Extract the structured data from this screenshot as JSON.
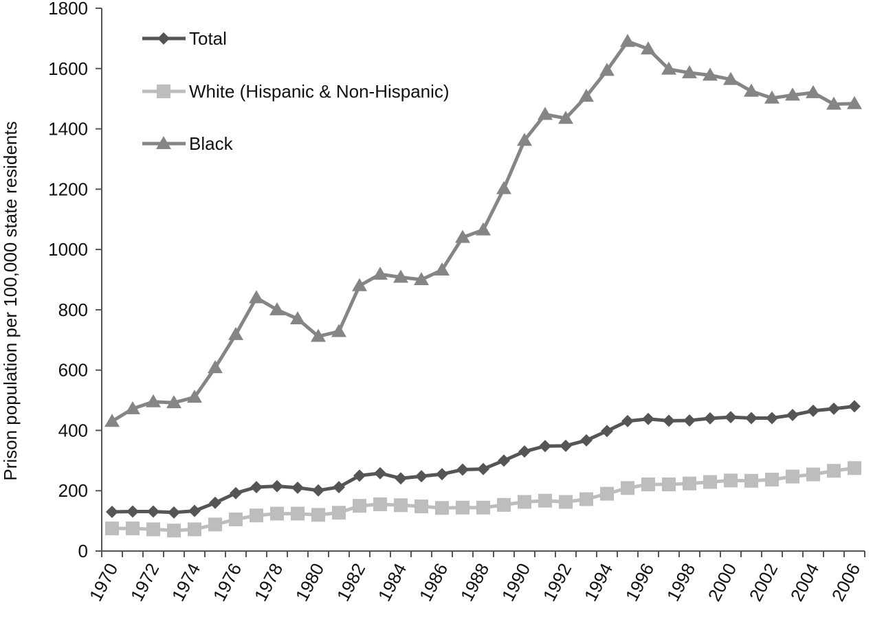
{
  "chart_data": {
    "type": "line",
    "title": "",
    "xlabel": "",
    "ylabel": "Prison population per 100,000 state residents",
    "ylim": [
      0,
      1800
    ],
    "yticks": [
      0,
      200,
      400,
      600,
      800,
      1000,
      1200,
      1400,
      1600,
      1800
    ],
    "xticks": [
      1970,
      1972,
      1974,
      1976,
      1978,
      1980,
      1982,
      1984,
      1986,
      1988,
      1990,
      1992,
      1994,
      1996,
      1998,
      2000,
      2002,
      2004,
      2006
    ],
    "xtick_labels": [
      "1970",
      "1972",
      "1974",
      "1976",
      "1978",
      "1980",
      "1982",
      "1984",
      "1986",
      "1988",
      "1990",
      "1992",
      "1994",
      "1996",
      "1998",
      "2000",
      "2002",
      "2004",
      "2006"
    ],
    "yticks_labels": [
      "0",
      "200",
      "400",
      "600",
      "800",
      "1000",
      "1200",
      "1400",
      "1600",
      "1800"
    ],
    "x": [
      1970,
      1971,
      1972,
      1973,
      1974,
      1975,
      1976,
      1977,
      1978,
      1979,
      1980,
      1981,
      1982,
      1983,
      1984,
      1985,
      1986,
      1987,
      1988,
      1989,
      1990,
      1991,
      1992,
      1993,
      1994,
      1995,
      1996,
      1997,
      1998,
      1999,
      2000,
      2001,
      2002,
      2003,
      2004,
      2005,
      2006
    ],
    "legend_position": "top-left",
    "grid": false,
    "series": [
      {
        "name": "Total",
        "color": "#555555",
        "marker": "diamond",
        "values": [
          130,
          131,
          131,
          128,
          133,
          160,
          192,
          212,
          215,
          210,
          201,
          212,
          250,
          258,
          241,
          248,
          255,
          270,
          272,
          300,
          330,
          348,
          349,
          367,
          398,
          431,
          438,
          432,
          433,
          440,
          444,
          441,
          441,
          451,
          465,
          472,
          480
        ]
      },
      {
        "name": "White (Hispanic & Non-Hispanic)",
        "color": "#bdbdbd",
        "marker": "square",
        "values": [
          75,
          75,
          72,
          68,
          72,
          88,
          105,
          118,
          124,
          124,
          120,
          127,
          150,
          155,
          152,
          148,
          143,
          144,
          144,
          153,
          163,
          167,
          163,
          172,
          190,
          209,
          221,
          221,
          224,
          229,
          234,
          233,
          237,
          247,
          254,
          266,
          275
        ]
      },
      {
        "name": "Black",
        "color": "#858585",
        "marker": "triangle",
        "values": [
          430,
          472,
          495,
          492,
          510,
          608,
          718,
          840,
          800,
          770,
          712,
          728,
          880,
          918,
          908,
          900,
          932,
          1040,
          1065,
          1202,
          1362,
          1448,
          1435,
          1508,
          1594,
          1690,
          1665,
          1598,
          1586,
          1578,
          1564,
          1525,
          1502,
          1512,
          1520,
          1482,
          1484
        ]
      }
    ]
  }
}
